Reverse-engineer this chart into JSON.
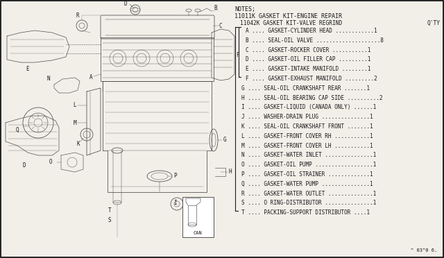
{
  "bg_color": "#f2efe9",
  "text_color": "#1a1a1a",
  "notes_title": "NOTES;",
  "line1": "11011K GASKET KIT-ENGINE REPAIR",
  "line2": "11042K GASKET KIT-VALVE REGRIND",
  "qty_header": "Q'TY",
  "parts_A_F": [
    [
      "A",
      "GASKET-CYLINDER HEAD",
      "............1"
    ],
    [
      "B",
      "SEAL-OIL VALVE",
      "....................8"
    ],
    [
      "C",
      "GASKET-ROCKER COVER",
      "...........1"
    ],
    [
      "D",
      "GASKET-OIL FILLER CAP",
      ".........1"
    ],
    [
      "E",
      "GASKET-INTAKE MANIFOLD",
      "........1"
    ],
    [
      "F",
      "GASKET-EXHAUST MANIFOLD",
      ".........2"
    ]
  ],
  "parts_G_T": [
    [
      "G",
      "SEAL-OIL CRANKSHAFT REAR",
      ".......1"
    ],
    [
      "H",
      "SEAL-OIL BEARING CAP SIDE",
      "..........2"
    ],
    [
      "I",
      "GASKET-LIQUID (CANADA ONLY)",
      "......1"
    ],
    [
      "J",
      "WASHER-DRAIN PLUG",
      "...............1"
    ],
    [
      "K",
      "SEAL-OIL CRANKSHAFT FRONT",
      ".......1"
    ],
    [
      "L",
      "GASKET-FRONT COVER RH",
      "...........1"
    ],
    [
      "M",
      "GASKET-FRONT COVER LH",
      "...........1"
    ],
    [
      "N",
      "GASKET-WATER INLET",
      "...............1"
    ],
    [
      "O",
      "GASKET-OIL PUMP",
      "..................1"
    ],
    [
      "P",
      "GASKET-OIL STRAINER",
      ".............1"
    ],
    [
      "Q",
      "GASKET-WATER PUMP",
      "...............1"
    ],
    [
      "R",
      "GASKET-WATER OUTLET",
      "..............1"
    ],
    [
      "S",
      "O RING-DISTRIBUTOR",
      "...............1"
    ],
    [
      "T",
      "PACKING-SUPPORT DISTRIBUTOR",
      "....1"
    ]
  ],
  "footnote": "^ 03^0 6.",
  "can_label": "CAN"
}
